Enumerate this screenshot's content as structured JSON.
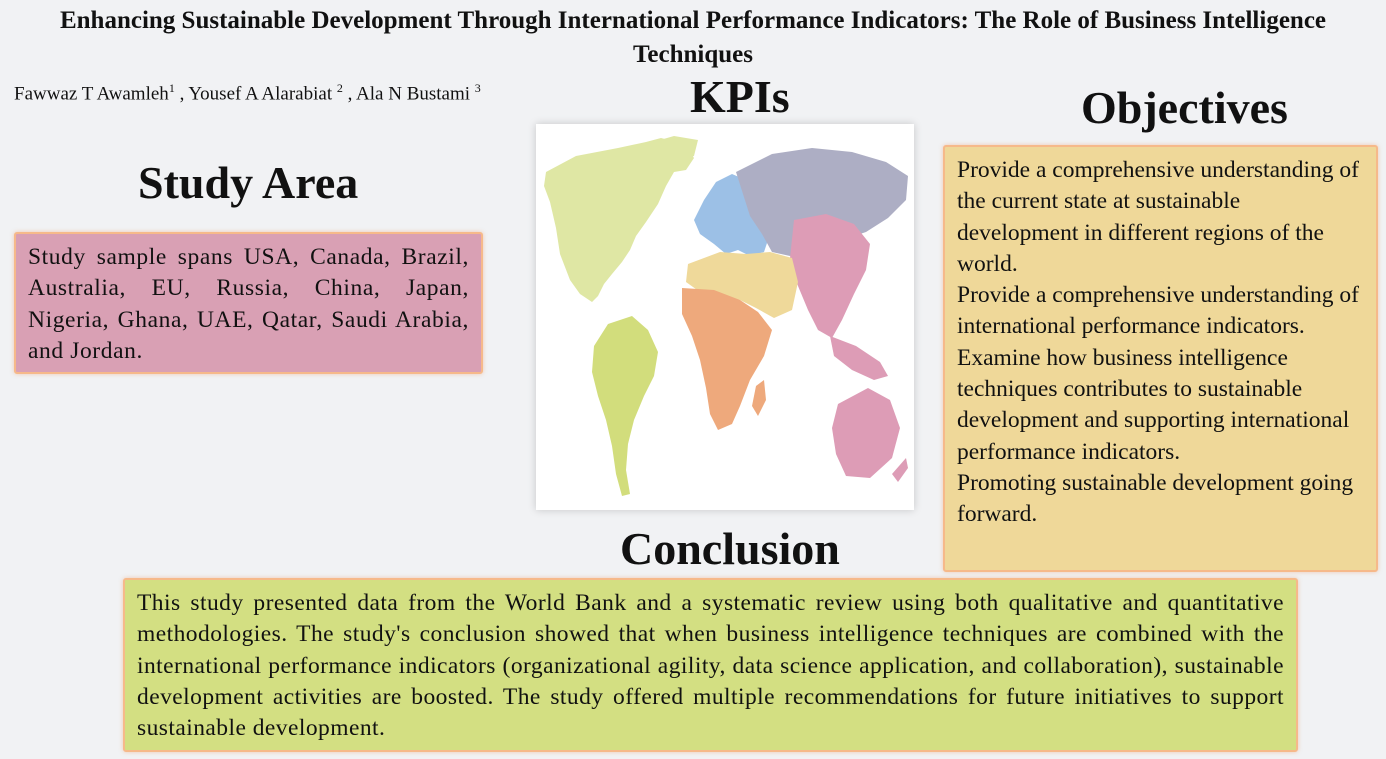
{
  "poster": {
    "title": "Enhancing Sustainable Development Through International Performance Indicators: The Role of Business Intelligence Techniques",
    "authors": [
      {
        "name": "Fawwaz T Awamleh",
        "sup": "1",
        "sep": " , "
      },
      {
        "name": "Yousef A Alarabiat ",
        "sup": "2",
        "sep": " , "
      },
      {
        "name": "Ala N Bustami ",
        "sup": "3",
        "sep": ""
      }
    ]
  },
  "study_area": {
    "heading": "Study Area",
    "text": "Study sample spans USA, Canada, Brazil, Australia, EU, Russia, China, Japan, Nigeria, Ghana, UAE, Qatar, Saudi Arabia, and Jordan.",
    "color": "#d9a0b4"
  },
  "kpis": {
    "heading": "KPIs",
    "map_colors": {
      "north_america": "#dfe7a4",
      "south_america": "#d2dd7c",
      "europe": "#9cc0e6",
      "russia_asia": "#adaec4",
      "east_asia_oceania": "#dd9cb6",
      "middle_east_north_africa": "#efd99a",
      "africa": "#eea97c"
    }
  },
  "objectives": {
    "heading": "Objectives",
    "items": [
      "Provide a comprehensive understanding of the current state at sustainable development in different regions of the world.",
      "Provide a comprehensive understanding of international performance indicators.",
      "Examine how business intelligence techniques contributes to sustainable development and supporting international performance indicators.",
      "Promoting sustainable development going forward."
    ],
    "color": "#efd899"
  },
  "conclusion": {
    "heading": "Conclusion",
    "text": "This study presented data from the World Bank and a systematic review using both qualitative and quantitative methodologies. The study's conclusion showed that when business intelligence techniques are combined with the international performance indicators (organizational agility, data science application, and collaboration), sustainable development activities are boosted. The study offered multiple recommendations for future initiatives to support sustainable development.",
    "color": "#d3df82"
  }
}
